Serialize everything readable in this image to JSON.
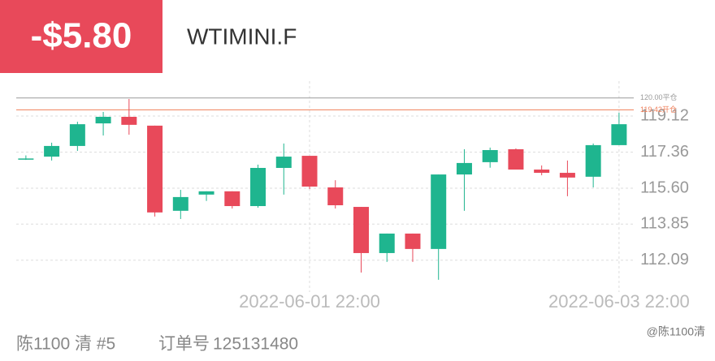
{
  "header": {
    "pnl": "-$5.80",
    "symbol": "WTIMINI.F"
  },
  "chart_data": {
    "type": "candlestick",
    "categories": [
      null,
      null,
      null,
      null,
      null,
      null,
      null,
      null,
      null,
      null,
      null,
      "2022-06-01 22:00",
      null,
      null,
      null,
      null,
      null,
      null,
      null,
      null,
      null,
      null,
      null,
      "2022-06-03 22:00"
    ],
    "open": [
      117.03,
      117.14,
      117.66,
      118.76,
      119.08,
      118.65,
      114.5,
      115.29,
      115.45,
      114.73,
      116.59,
      117.18,
      115.64,
      114.69,
      112.44,
      113.39,
      112.64,
      116.27,
      116.87,
      117.5,
      116.51,
      116.35,
      116.16,
      117.7
    ],
    "high": [
      117.2,
      117.82,
      118.84,
      119.32,
      119.95,
      118.65,
      115.52,
      115.45,
      115.45,
      116.75,
      117.78,
      117.18,
      115.99,
      114.69,
      113.39,
      113.39,
      116.27,
      117.5,
      117.58,
      117.54,
      116.71,
      116.95,
      117.78,
      119.28
    ],
    "low": [
      116.98,
      116.95,
      117.42,
      118.17,
      118.21,
      114.22,
      114.1,
      114.98,
      114.61,
      114.65,
      115.29,
      115.56,
      114.61,
      111.49,
      112.01,
      112.01,
      111.14,
      114.5,
      116.6,
      116.51,
      116.23,
      115.21,
      115.64,
      117.7
    ],
    "close": [
      117.05,
      117.66,
      118.72,
      119.08,
      118.69,
      114.42,
      115.17,
      115.45,
      114.73,
      116.59,
      117.14,
      115.68,
      114.77,
      112.44,
      113.39,
      112.64,
      116.27,
      116.83,
      117.46,
      116.51,
      116.35,
      116.12,
      117.7,
      118.72
    ],
    "up_color": "#1fb58f",
    "down_color": "#e8495a",
    "ylim": [
      110.54,
      120.82
    ],
    "yticks": [
      119.12,
      117.36,
      {
        "value": 115.6,
        "label": "115.60"
      },
      113.85,
      112.09
    ],
    "grid": true,
    "ref_lines": [
      {
        "value": 120.0,
        "label": "120.00平仓",
        "color": "#9a9a9a"
      },
      {
        "value": 119.42,
        "label": "119.42开仓",
        "color": "#f07f5a"
      }
    ]
  },
  "footer": {
    "trader": "陈1100 清 #5",
    "order_label": "订单号",
    "order_number": "125131480",
    "watermark": "@陈1100清"
  }
}
